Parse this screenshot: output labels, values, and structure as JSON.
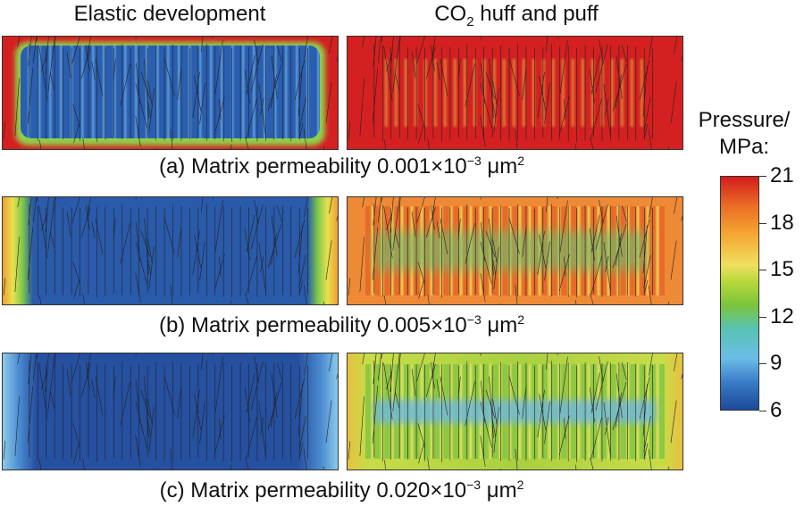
{
  "headers": {
    "left": "Elastic development",
    "right_pre": "CO",
    "right_sub": "2",
    "right_post": " huff and puff"
  },
  "captions": [
    {
      "pre": "(a) Matrix permeability 0.001×10",
      "exp": "−3",
      "unit": " μm",
      "unit_exp": "2"
    },
    {
      "pre": "(b) Matrix permeability 0.005×10",
      "exp": "−3",
      "unit": " μm",
      "unit_exp": "2"
    },
    {
      "pre": "(c) Matrix permeability 0.020×10",
      "exp": "−3",
      "unit": " μm",
      "unit_exp": "2"
    }
  ],
  "colorbar": {
    "title_line1": "Pressure/",
    "title_line2": "MPa:",
    "ticks": [
      "21",
      "18",
      "15",
      "12",
      "9",
      "6"
    ],
    "min": 6,
    "max": 21,
    "colors": {
      "6": "#1d4a9a",
      "9": "#6bbde8",
      "12": "#58c3b0",
      "15": "#b8d83a",
      "18": "#f5a832",
      "21": "#d21d1d"
    }
  }
}
